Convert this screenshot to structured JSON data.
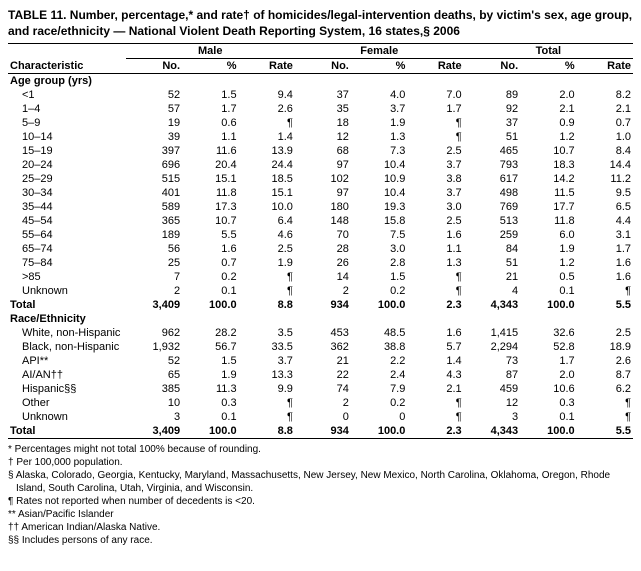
{
  "title": "TABLE 11. Number, percentage,* and rate† of homicides/legal-intervention deaths, by victim's sex, age group, and race/ethnicity — National Violent Death Reporting System, 16 states,§ 2006",
  "group_headers": [
    "Male",
    "Female",
    "Total"
  ],
  "col_headers": {
    "char": "Characteristic",
    "no": "No.",
    "pct": "%",
    "rate": "Rate"
  },
  "sections": [
    {
      "label": "Age group (yrs)",
      "rows": [
        {
          "c": "<1",
          "m_no": "52",
          "m_pct": "1.5",
          "m_rate": "9.4",
          "f_no": "37",
          "f_pct": "4.0",
          "f_rate": "7.0",
          "t_no": "89",
          "t_pct": "2.0",
          "t_rate": "8.2"
        },
        {
          "c": "1–4",
          "m_no": "57",
          "m_pct": "1.7",
          "m_rate": "2.6",
          "f_no": "35",
          "f_pct": "3.7",
          "f_rate": "1.7",
          "t_no": "92",
          "t_pct": "2.1",
          "t_rate": "2.1"
        },
        {
          "c": "5–9",
          "m_no": "19",
          "m_pct": "0.6",
          "m_rate": "¶",
          "f_no": "18",
          "f_pct": "1.9",
          "f_rate": "¶",
          "t_no": "37",
          "t_pct": "0.9",
          "t_rate": "0.7"
        },
        {
          "c": "10–14",
          "m_no": "39",
          "m_pct": "1.1",
          "m_rate": "1.4",
          "f_no": "12",
          "f_pct": "1.3",
          "f_rate": "¶",
          "t_no": "51",
          "t_pct": "1.2",
          "t_rate": "1.0"
        },
        {
          "c": "15–19",
          "m_no": "397",
          "m_pct": "11.6",
          "m_rate": "13.9",
          "f_no": "68",
          "f_pct": "7.3",
          "f_rate": "2.5",
          "t_no": "465",
          "t_pct": "10.7",
          "t_rate": "8.4"
        },
        {
          "c": "20–24",
          "m_no": "696",
          "m_pct": "20.4",
          "m_rate": "24.4",
          "f_no": "97",
          "f_pct": "10.4",
          "f_rate": "3.7",
          "t_no": "793",
          "t_pct": "18.3",
          "t_rate": "14.4"
        },
        {
          "c": "25–29",
          "m_no": "515",
          "m_pct": "15.1",
          "m_rate": "18.5",
          "f_no": "102",
          "f_pct": "10.9",
          "f_rate": "3.8",
          "t_no": "617",
          "t_pct": "14.2",
          "t_rate": "11.2"
        },
        {
          "c": "30–34",
          "m_no": "401",
          "m_pct": "11.8",
          "m_rate": "15.1",
          "f_no": "97",
          "f_pct": "10.4",
          "f_rate": "3.7",
          "t_no": "498",
          "t_pct": "11.5",
          "t_rate": "9.5"
        },
        {
          "c": "35–44",
          "m_no": "589",
          "m_pct": "17.3",
          "m_rate": "10.0",
          "f_no": "180",
          "f_pct": "19.3",
          "f_rate": "3.0",
          "t_no": "769",
          "t_pct": "17.7",
          "t_rate": "6.5"
        },
        {
          "c": "45–54",
          "m_no": "365",
          "m_pct": "10.7",
          "m_rate": "6.4",
          "f_no": "148",
          "f_pct": "15.8",
          "f_rate": "2.5",
          "t_no": "513",
          "t_pct": "11.8",
          "t_rate": "4.4"
        },
        {
          "c": "55–64",
          "m_no": "189",
          "m_pct": "5.5",
          "m_rate": "4.6",
          "f_no": "70",
          "f_pct": "7.5",
          "f_rate": "1.6",
          "t_no": "259",
          "t_pct": "6.0",
          "t_rate": "3.1"
        },
        {
          "c": "65–74",
          "m_no": "56",
          "m_pct": "1.6",
          "m_rate": "2.5",
          "f_no": "28",
          "f_pct": "3.0",
          "f_rate": "1.1",
          "t_no": "84",
          "t_pct": "1.9",
          "t_rate": "1.7"
        },
        {
          "c": "75–84",
          "m_no": "25",
          "m_pct": "0.7",
          "m_rate": "1.9",
          "f_no": "26",
          "f_pct": "2.8",
          "f_rate": "1.3",
          "t_no": "51",
          "t_pct": "1.2",
          "t_rate": "1.6"
        },
        {
          "c": ">85",
          "m_no": "7",
          "m_pct": "0.2",
          "m_rate": "¶",
          "f_no": "14",
          "f_pct": "1.5",
          "f_rate": "¶",
          "t_no": "21",
          "t_pct": "0.5",
          "t_rate": "1.6"
        },
        {
          "c": "Unknown",
          "m_no": "2",
          "m_pct": "0.1",
          "m_rate": "¶",
          "f_no": "2",
          "f_pct": "0.2",
          "f_rate": "¶",
          "t_no": "4",
          "t_pct": "0.1",
          "t_rate": "¶"
        }
      ],
      "total": {
        "c": "Total",
        "m_no": "3,409",
        "m_pct": "100.0",
        "m_rate": "8.8",
        "f_no": "934",
        "f_pct": "100.0",
        "f_rate": "2.3",
        "t_no": "4,343",
        "t_pct": "100.0",
        "t_rate": "5.5"
      }
    },
    {
      "label": "Race/Ethnicity",
      "rows": [
        {
          "c": "White, non-Hispanic",
          "m_no": "962",
          "m_pct": "28.2",
          "m_rate": "3.5",
          "f_no": "453",
          "f_pct": "48.5",
          "f_rate": "1.6",
          "t_no": "1,415",
          "t_pct": "32.6",
          "t_rate": "2.5"
        },
        {
          "c": "Black, non-Hispanic",
          "m_no": "1,932",
          "m_pct": "56.7",
          "m_rate": "33.5",
          "f_no": "362",
          "f_pct": "38.8",
          "f_rate": "5.7",
          "t_no": "2,294",
          "t_pct": "52.8",
          "t_rate": "18.9"
        },
        {
          "c": "API**",
          "m_no": "52",
          "m_pct": "1.5",
          "m_rate": "3.7",
          "f_no": "21",
          "f_pct": "2.2",
          "f_rate": "1.4",
          "t_no": "73",
          "t_pct": "1.7",
          "t_rate": "2.6"
        },
        {
          "c": "AI/AN††",
          "m_no": "65",
          "m_pct": "1.9",
          "m_rate": "13.3",
          "f_no": "22",
          "f_pct": "2.4",
          "f_rate": "4.3",
          "t_no": "87",
          "t_pct": "2.0",
          "t_rate": "8.7"
        },
        {
          "c": "Hispanic§§",
          "m_no": "385",
          "m_pct": "11.3",
          "m_rate": "9.9",
          "f_no": "74",
          "f_pct": "7.9",
          "f_rate": "2.1",
          "t_no": "459",
          "t_pct": "10.6",
          "t_rate": "6.2"
        },
        {
          "c": "Other",
          "m_no": "10",
          "m_pct": "0.3",
          "m_rate": "¶",
          "f_no": "2",
          "f_pct": "0.2",
          "f_rate": "¶",
          "t_no": "12",
          "t_pct": "0.3",
          "t_rate": "¶"
        },
        {
          "c": "Unknown",
          "m_no": "3",
          "m_pct": "0.1",
          "m_rate": "¶",
          "f_no": "0",
          "f_pct": "0",
          "f_rate": "¶",
          "t_no": "3",
          "t_pct": "0.1",
          "t_rate": "¶"
        }
      ],
      "total": {
        "c": "Total",
        "m_no": "3,409",
        "m_pct": "100.0",
        "m_rate": "8.8",
        "f_no": "934",
        "f_pct": "100.0",
        "f_rate": "2.3",
        "t_no": "4,343",
        "t_pct": "100.0",
        "t_rate": "5.5"
      }
    }
  ],
  "footnotes": [
    "* Percentages might not total 100% because of rounding.",
    "† Per 100,000 population.",
    "§ Alaska, Colorado, Georgia, Kentucky, Maryland, Massachusetts, New Jersey, New Mexico, North Carolina, Oklahoma, Oregon, Rhode Island, South Carolina, Utah, Virginia, and Wisconsin.",
    "¶ Rates not reported when number of decedents is <20.",
    "** Asian/Pacific Islander",
    "†† American Indian/Alaska Native.",
    "§§ Includes persons of any race."
  ]
}
